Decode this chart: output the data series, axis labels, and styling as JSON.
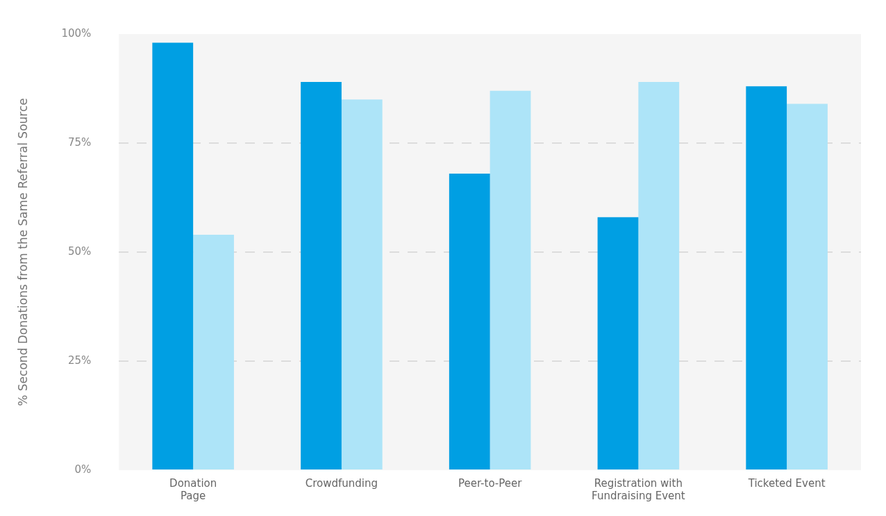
{
  "chart_data": {
    "type": "bar",
    "ylabel": "% Second Donations from the Same Referral Source",
    "categories": [
      "Donation\nPage",
      "Crowdfunding",
      "Peer-to-Peer",
      "Registration with\nFundraising Event",
      "Ticketed Event"
    ],
    "series": [
      {
        "color": "#009fe3",
        "values": [
          98,
          89,
          68,
          58,
          88
        ]
      },
      {
        "color": "#ade4f8",
        "values": [
          54,
          85,
          87,
          89,
          84
        ]
      }
    ],
    "ylim": [
      0,
      100
    ],
    "yticks": [
      {
        "value": 0,
        "label": "0%"
      },
      {
        "value": 25,
        "label": "25%"
      },
      {
        "value": 50,
        "label": "50%"
      },
      {
        "value": 75,
        "label": "75%"
      },
      {
        "value": 100,
        "label": "100%"
      }
    ],
    "grid": "y",
    "legend": false
  }
}
